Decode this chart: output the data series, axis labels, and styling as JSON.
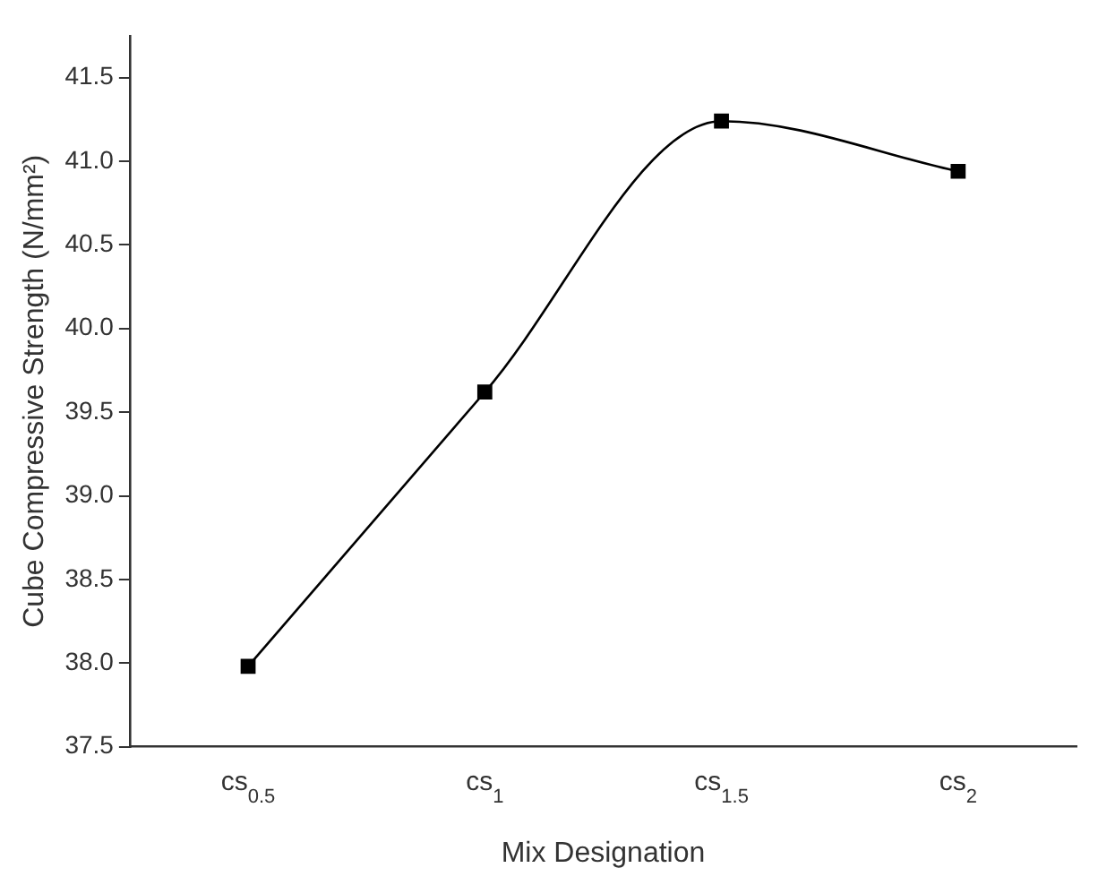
{
  "chart_data": {
    "type": "line",
    "xlabel": "Mix Designation",
    "ylabel": "Cube Compressive Strength (N/mm²)",
    "categories": [
      "cs$_{0.5}$",
      "cs$_{1}$",
      "cs$_{1.5}$",
      "cs$_{2}$"
    ],
    "series": [
      {
        "color": "#000000",
        "values": [
          37.98,
          39.62,
          41.24,
          40.94
        ]
      }
    ],
    "ylim": [
      37.5,
      41.75
    ],
    "yticks": [
      {
        "value": 37.5,
        "label": "37.5"
      },
      {
        "value": 38,
        "label": "38.0"
      },
      {
        "value": 38.5,
        "label": "38.5"
      },
      {
        "value": 39,
        "label": "39.0"
      },
      {
        "value": 39.5,
        "label": "39.5"
      },
      {
        "value": 40,
        "label": "40.0"
      },
      {
        "value": 40.5,
        "label": "40.5"
      },
      {
        "value": 41,
        "label": "41.0"
      },
      {
        "value": 41.5,
        "label": "41.5"
      }
    ],
    "grid": false,
    "legend": false,
    "marker": "square",
    "line_style": "solid"
  }
}
